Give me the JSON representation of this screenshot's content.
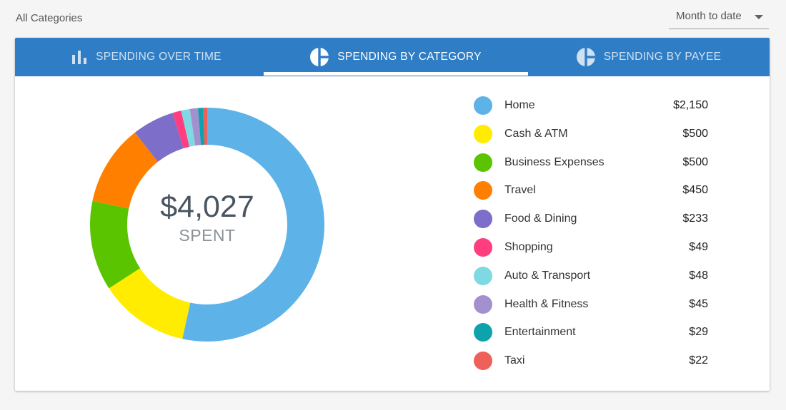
{
  "filter": {
    "label": "All Categories"
  },
  "date_range": {
    "selected": "Month to date"
  },
  "tabs": [
    {
      "label": "SPENDING OVER TIME",
      "icon": "bar-chart-icon",
      "active": false
    },
    {
      "label": "SPENDING BY CATEGORY",
      "icon": "pie-chart-icon",
      "active": true
    },
    {
      "label": "SPENDING BY PAYEE",
      "icon": "pie-chart-icon",
      "active": false
    }
  ],
  "summary": {
    "amount": "$4,027",
    "label": "SPENT"
  },
  "colors": {
    "tabbar": "#2e7dc5",
    "tab_active": "#ffffff",
    "tab_inactive": "#cfe1f3"
  },
  "chart_data": {
    "type": "pie",
    "categories": [
      "Home",
      "Cash & ATM",
      "Business Expenses",
      "Travel",
      "Food & Dining",
      "Shopping",
      "Auto & Transport",
      "Health & Fitness",
      "Entertainment",
      "Taxi"
    ],
    "values": [
      2150,
      500,
      500,
      450,
      233,
      49,
      48,
      45,
      29,
      22
    ],
    "value_labels": [
      "$2,150",
      "$500",
      "$500",
      "$450",
      "$233",
      "$49",
      "$48",
      "$45",
      "$29",
      "$22"
    ],
    "colors": [
      "#5db2e8",
      "#ffec00",
      "#5ac400",
      "#ff7f00",
      "#7d6ec9",
      "#ff3d7f",
      "#7fd9e3",
      "#a391cf",
      "#0ea2ad",
      "#f0605a"
    ],
    "legend_position": "right"
  }
}
